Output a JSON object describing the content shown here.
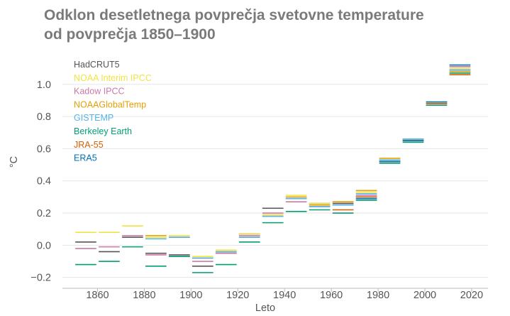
{
  "title_line1": "Odklon desetletnega povprečja svetovne temperature",
  "title_line2": "od povprečja 1850–1900",
  "chart_data": {
    "type": "line",
    "xlabel": "Leto",
    "ylabel": "°C",
    "xlim": [
      1845,
      2027
    ],
    "ylim": [
      -0.25,
      1.18
    ],
    "xticks": [
      1860,
      1880,
      1900,
      1920,
      1940,
      1960,
      1980,
      2000,
      2020
    ],
    "yticks": [
      -0.2,
      0.0,
      0.2,
      0.4,
      0.6,
      0.8,
      1.0
    ],
    "ytick_labels": [
      "−0.2",
      "0.0",
      "0.2",
      "0.4",
      "0.6",
      "0.8",
      "1.0"
    ],
    "grid": "horizontal",
    "legend_position": "top-left",
    "decades": [
      [
        1850,
        1860
      ],
      [
        1860,
        1870
      ],
      [
        1870,
        1880
      ],
      [
        1880,
        1890
      ],
      [
        1890,
        1900
      ],
      [
        1900,
        1910
      ],
      [
        1910,
        1920
      ],
      [
        1920,
        1930
      ],
      [
        1930,
        1940
      ],
      [
        1940,
        1950
      ],
      [
        1950,
        1960
      ],
      [
        1960,
        1970
      ],
      [
        1970,
        1980
      ],
      [
        1980,
        1990
      ],
      [
        1990,
        2000
      ],
      [
        2000,
        2010
      ],
      [
        2010,
        2020
      ]
    ],
    "series": [
      {
        "name": "HadCRUT5",
        "color": "#555555",
        "values": [
          0.02,
          -0.04,
          0.05,
          -0.05,
          -0.06,
          -0.13,
          -0.05,
          0.07,
          0.23,
          0.29,
          0.26,
          0.26,
          0.3,
          0.53,
          0.66,
          0.89,
          1.09
        ]
      },
      {
        "name": "NOAA Interim IPCC",
        "color": "#f0e442",
        "values": [
          0.08,
          0.08,
          0.12,
          0.05,
          0.06,
          -0.07,
          -0.03,
          0.07,
          0.19,
          0.31,
          0.26,
          0.27,
          0.33,
          0.54,
          0.66,
          0.89,
          1.1
        ]
      },
      {
        "name": "Kadow IPCC",
        "color": "#cc79a7",
        "values": [
          -0.02,
          -0.01,
          0.06,
          -0.06,
          -0.07,
          -0.1,
          -0.05,
          0.06,
          0.2,
          0.27,
          0.24,
          0.25,
          0.31,
          0.53,
          0.66,
          0.89,
          1.11
        ]
      },
      {
        "name": "NOAAGlobalTemp",
        "color": "#e69f00",
        "values": [
          null,
          null,
          null,
          0.06,
          0.05,
          -0.08,
          -0.04,
          0.05,
          0.18,
          0.3,
          0.25,
          0.27,
          0.34,
          0.54,
          0.66,
          0.87,
          1.08
        ]
      },
      {
        "name": "GISTEMP",
        "color": "#56b4e9",
        "values": [
          null,
          null,
          null,
          0.04,
          0.05,
          -0.08,
          -0.04,
          0.05,
          0.18,
          0.29,
          0.24,
          0.25,
          0.32,
          0.53,
          0.66,
          0.88,
          1.09
        ]
      },
      {
        "name": "Berkeley Earth",
        "color": "#009e73",
        "values": [
          -0.12,
          -0.1,
          -0.01,
          -0.13,
          -0.07,
          -0.17,
          -0.12,
          0.02,
          0.14,
          0.21,
          0.22,
          0.2,
          0.28,
          0.51,
          0.64,
          0.87,
          1.07
        ]
      },
      {
        "name": "JRA-55",
        "color": "#d55e00",
        "values": [
          null,
          null,
          null,
          null,
          null,
          null,
          null,
          null,
          null,
          null,
          null,
          0.22,
          0.3,
          0.52,
          0.65,
          0.88,
          1.06
        ]
      },
      {
        "name": "ERA5",
        "color": "#0072b2",
        "values": [
          null,
          null,
          null,
          null,
          null,
          null,
          null,
          null,
          null,
          null,
          null,
          null,
          0.29,
          0.52,
          0.65,
          0.89,
          1.12
        ]
      }
    ]
  }
}
